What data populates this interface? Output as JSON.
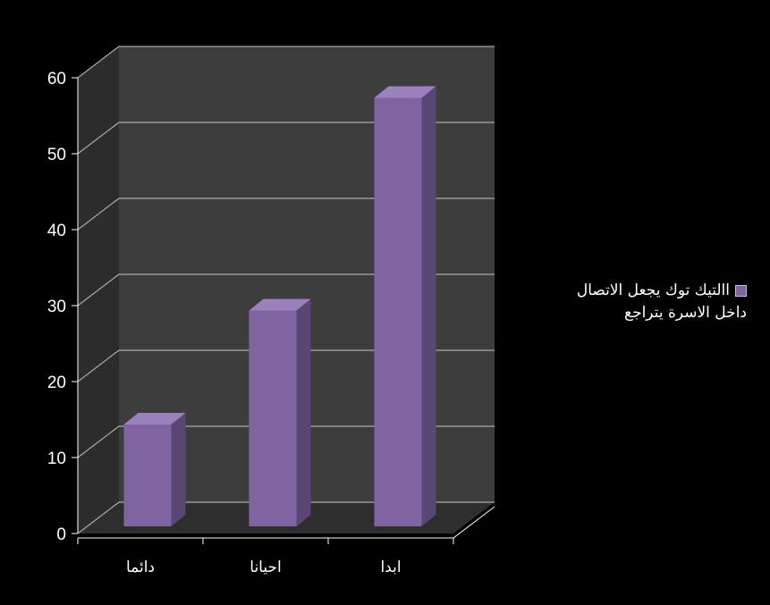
{
  "chart_data": {
    "type": "bar",
    "categories": [
      "دائما",
      "احيانا",
      "ابدا"
    ],
    "series": [
      {
        "name": "االتيك توك يجعل الاتصال داخل الاسرة يتراجع",
        "values": [
          14,
          29,
          57
        ]
      }
    ],
    "ylim": [
      0,
      60
    ],
    "yticks": [
      0,
      10,
      20,
      30,
      40,
      50,
      60
    ],
    "title": "",
    "xlabel": "",
    "ylabel": "",
    "grid": true,
    "legend_position": "right",
    "colors": {
      "background": "#000000",
      "bar_front": "#8064a2",
      "bar_side": "#5a4673",
      "bar_top": "#9a80bd",
      "back_wall": "#3d3d3d",
      "side_wall": "#2c2c2c",
      "floor": "#2e2e2e",
      "gridline": "#aaaaaa",
      "text": "#ffffff"
    }
  },
  "legend": {
    "line1": "االتيك توك يجعل الاتصال",
    "line2": "داخل الاسرة يتراجع"
  }
}
